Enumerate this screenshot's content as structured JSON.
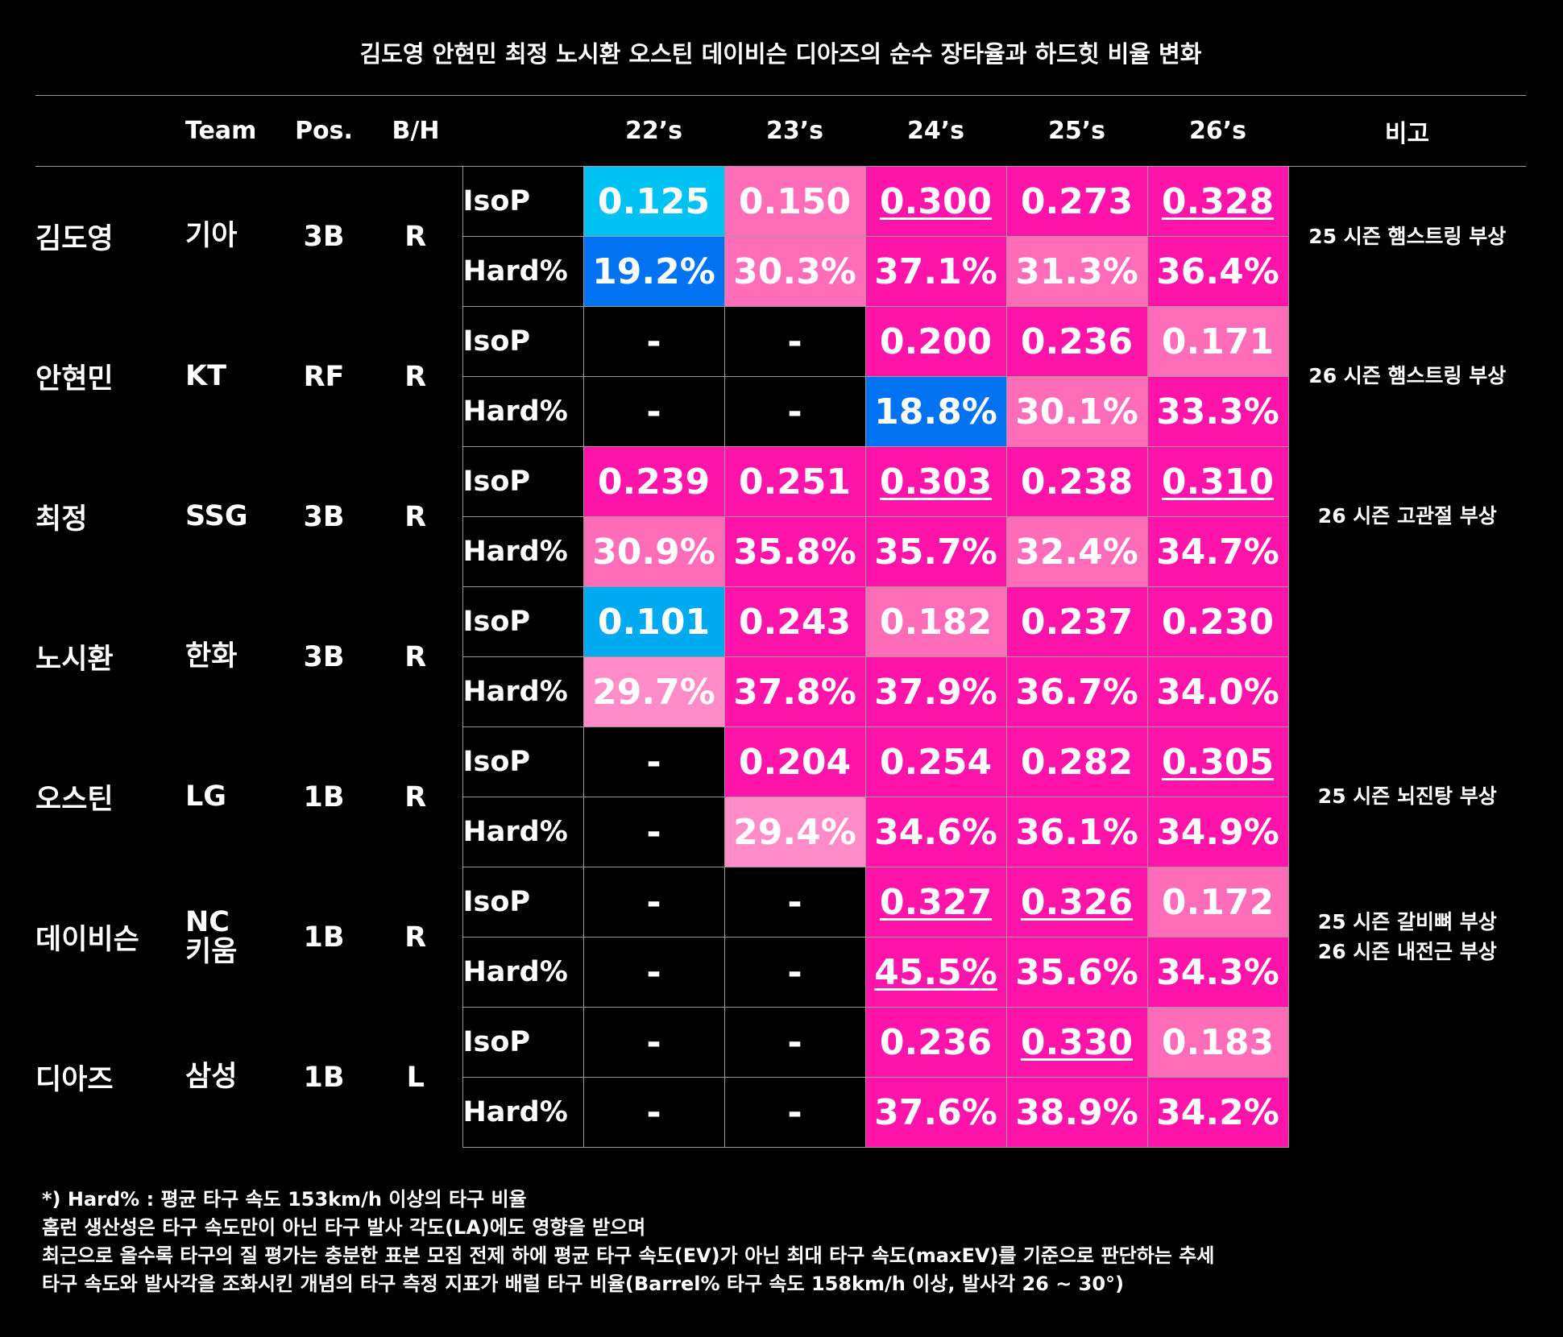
{
  "title": "김도영 안현민 최정 노시환 오스틴 데이비슨 디아즈의 순수 장타율과 하드힛 비율 변화",
  "header": {
    "team": "Team",
    "pos": "Pos.",
    "bh": "B/H",
    "seasons": [
      "22’s",
      "23’s",
      "24’s",
      "25’s",
      "26’s"
    ],
    "note": "비고"
  },
  "metric_labels": {
    "isop": "IsoP",
    "hard": "Hard%"
  },
  "colors": {
    "blue_bright": "#0070f0",
    "blue_sky": "#00b4ee",
    "pink_hot": "#ff14aa",
    "pink_light": "#ff66b3",
    "pink_pale": "#ff8cc6",
    "dash": "#000000"
  },
  "players": [
    {
      "name": "김도영",
      "team": "기아",
      "pos": "3B",
      "bh": "R",
      "note": [
        "25 시즌 햄스트링 부상"
      ],
      "isop": [
        {
          "v": "0.125",
          "c": "#00c2f2"
        },
        {
          "v": "0.150",
          "c": "#ff6cb8"
        },
        {
          "v": "0.300",
          "c": "#ff14aa",
          "u": true
        },
        {
          "v": "0.273",
          "c": "#ff14aa"
        },
        {
          "v": "0.328",
          "c": "#ff14aa",
          "u": true
        }
      ],
      "hard": [
        {
          "v": "19.2%",
          "c": "#0072f2"
        },
        {
          "v": "30.3%",
          "c": "#ff6cb8"
        },
        {
          "v": "37.1%",
          "c": "#ff14aa"
        },
        {
          "v": "31.3%",
          "c": "#ff6cb8"
        },
        {
          "v": "36.4%",
          "c": "#ff14aa"
        }
      ]
    },
    {
      "name": "안현민",
      "team": "KT",
      "pos": "RF",
      "bh": "R",
      "note": [
        "26 시즌 햄스트링 부상"
      ],
      "isop": [
        {
          "v": "-",
          "c": ""
        },
        {
          "v": "-",
          "c": ""
        },
        {
          "v": "0.200",
          "c": "#ff14aa"
        },
        {
          "v": "0.236",
          "c": "#ff14aa"
        },
        {
          "v": "0.171",
          "c": "#ff6cb8"
        }
      ],
      "hard": [
        {
          "v": "-",
          "c": ""
        },
        {
          "v": "-",
          "c": ""
        },
        {
          "v": "18.8%",
          "c": "#0072f2"
        },
        {
          "v": "30.1%",
          "c": "#ff6cb8"
        },
        {
          "v": "33.3%",
          "c": "#ff14aa"
        }
      ]
    },
    {
      "name": "최정",
      "team": "SSG",
      "pos": "3B",
      "bh": "R",
      "note": [
        "26 시즌 고관절 부상"
      ],
      "isop": [
        {
          "v": "0.239",
          "c": "#ff14aa"
        },
        {
          "v": "0.251",
          "c": "#ff14aa"
        },
        {
          "v": "0.303",
          "c": "#ff14aa",
          "u": true
        },
        {
          "v": "0.238",
          "c": "#ff14aa"
        },
        {
          "v": "0.310",
          "c": "#ff14aa",
          "u": true
        }
      ],
      "hard": [
        {
          "v": "30.9%",
          "c": "#ff6cb8"
        },
        {
          "v": "35.8%",
          "c": "#ff14aa"
        },
        {
          "v": "35.7%",
          "c": "#ff14aa"
        },
        {
          "v": "32.4%",
          "c": "#ff6cb8"
        },
        {
          "v": "34.7%",
          "c": "#ff14aa"
        }
      ]
    },
    {
      "name": "노시환",
      "team": "한화",
      "pos": "3B",
      "bh": "R",
      "note": [],
      "isop": [
        {
          "v": "0.101",
          "c": "#00aaf0"
        },
        {
          "v": "0.243",
          "c": "#ff14aa"
        },
        {
          "v": "0.182",
          "c": "#ff6cb8"
        },
        {
          "v": "0.237",
          "c": "#ff14aa"
        },
        {
          "v": "0.230",
          "c": "#ff14aa"
        }
      ],
      "hard": [
        {
          "v": "29.7%",
          "c": "#ff8cc6"
        },
        {
          "v": "37.8%",
          "c": "#ff14aa"
        },
        {
          "v": "37.9%",
          "c": "#ff14aa"
        },
        {
          "v": "36.7%",
          "c": "#ff14aa"
        },
        {
          "v": "34.0%",
          "c": "#ff14aa"
        }
      ]
    },
    {
      "name": "오스틴",
      "team": "LG",
      "pos": "1B",
      "bh": "R",
      "note": [
        "25 시즌 뇌진탕 부상"
      ],
      "isop": [
        {
          "v": "-",
          "c": ""
        },
        {
          "v": "0.204",
          "c": "#ff14aa"
        },
        {
          "v": "0.254",
          "c": "#ff14aa"
        },
        {
          "v": "0.282",
          "c": "#ff14aa"
        },
        {
          "v": "0.305",
          "c": "#ff14aa",
          "u": true
        }
      ],
      "hard": [
        {
          "v": "-",
          "c": ""
        },
        {
          "v": "29.4%",
          "c": "#ff8cc6"
        },
        {
          "v": "34.6%",
          "c": "#ff14aa"
        },
        {
          "v": "36.1%",
          "c": "#ff14aa"
        },
        {
          "v": "34.9%",
          "c": "#ff14aa"
        }
      ]
    },
    {
      "name": "데이비슨",
      "team": "NC\n키움",
      "pos": "1B",
      "bh": "R",
      "note": [
        "25 시즌 갈비뼈 부상",
        "26 시즌 내전근 부상"
      ],
      "isop": [
        {
          "v": "-",
          "c": ""
        },
        {
          "v": "-",
          "c": ""
        },
        {
          "v": "0.327",
          "c": "#ff14aa",
          "u": true
        },
        {
          "v": "0.326",
          "c": "#ff14aa",
          "u": true
        },
        {
          "v": "0.172",
          "c": "#ff6cb8"
        }
      ],
      "hard": [
        {
          "v": "-",
          "c": ""
        },
        {
          "v": "-",
          "c": ""
        },
        {
          "v": "45.5%",
          "c": "#ff14aa",
          "u": true
        },
        {
          "v": "35.6%",
          "c": "#ff14aa"
        },
        {
          "v": "34.3%",
          "c": "#ff14aa"
        }
      ]
    },
    {
      "name": "디아즈",
      "team": "삼성",
      "pos": "1B",
      "bh": "L",
      "note": [],
      "isop": [
        {
          "v": "-",
          "c": ""
        },
        {
          "v": "-",
          "c": ""
        },
        {
          "v": "0.236",
          "c": "#ff14aa"
        },
        {
          "v": "0.330",
          "c": "#ff14aa",
          "u": true
        },
        {
          "v": "0.183",
          "c": "#ff6cb8"
        }
      ],
      "hard": [
        {
          "v": "-",
          "c": ""
        },
        {
          "v": "-",
          "c": ""
        },
        {
          "v": "37.6%",
          "c": "#ff14aa"
        },
        {
          "v": "38.9%",
          "c": "#ff14aa"
        },
        {
          "v": "34.2%",
          "c": "#ff14aa"
        }
      ]
    }
  ],
  "footnotes": [
    "*) Hard% :  평균 타구 속도 153km/h 이상의 타구 비율",
    "홈런 생산성은 타구 속도만이 아닌 타구 발사 각도(LA)에도 영향을 받으며",
    "최근으로 올수록 타구의 질 평가는 충분한 표본 모집 전제 하에 평균 타구 속도(EV)가 아닌 최대 타구 속도(maxEV)를 기준으로 판단하는 추세",
    "타구 속도와 발사각을 조화시킨 개념의 타구 측정 지표가 배럴 타구 비율(Barrel% 타구 속도 158km/h 이상, 발사각 26 ~ 30°)"
  ]
}
